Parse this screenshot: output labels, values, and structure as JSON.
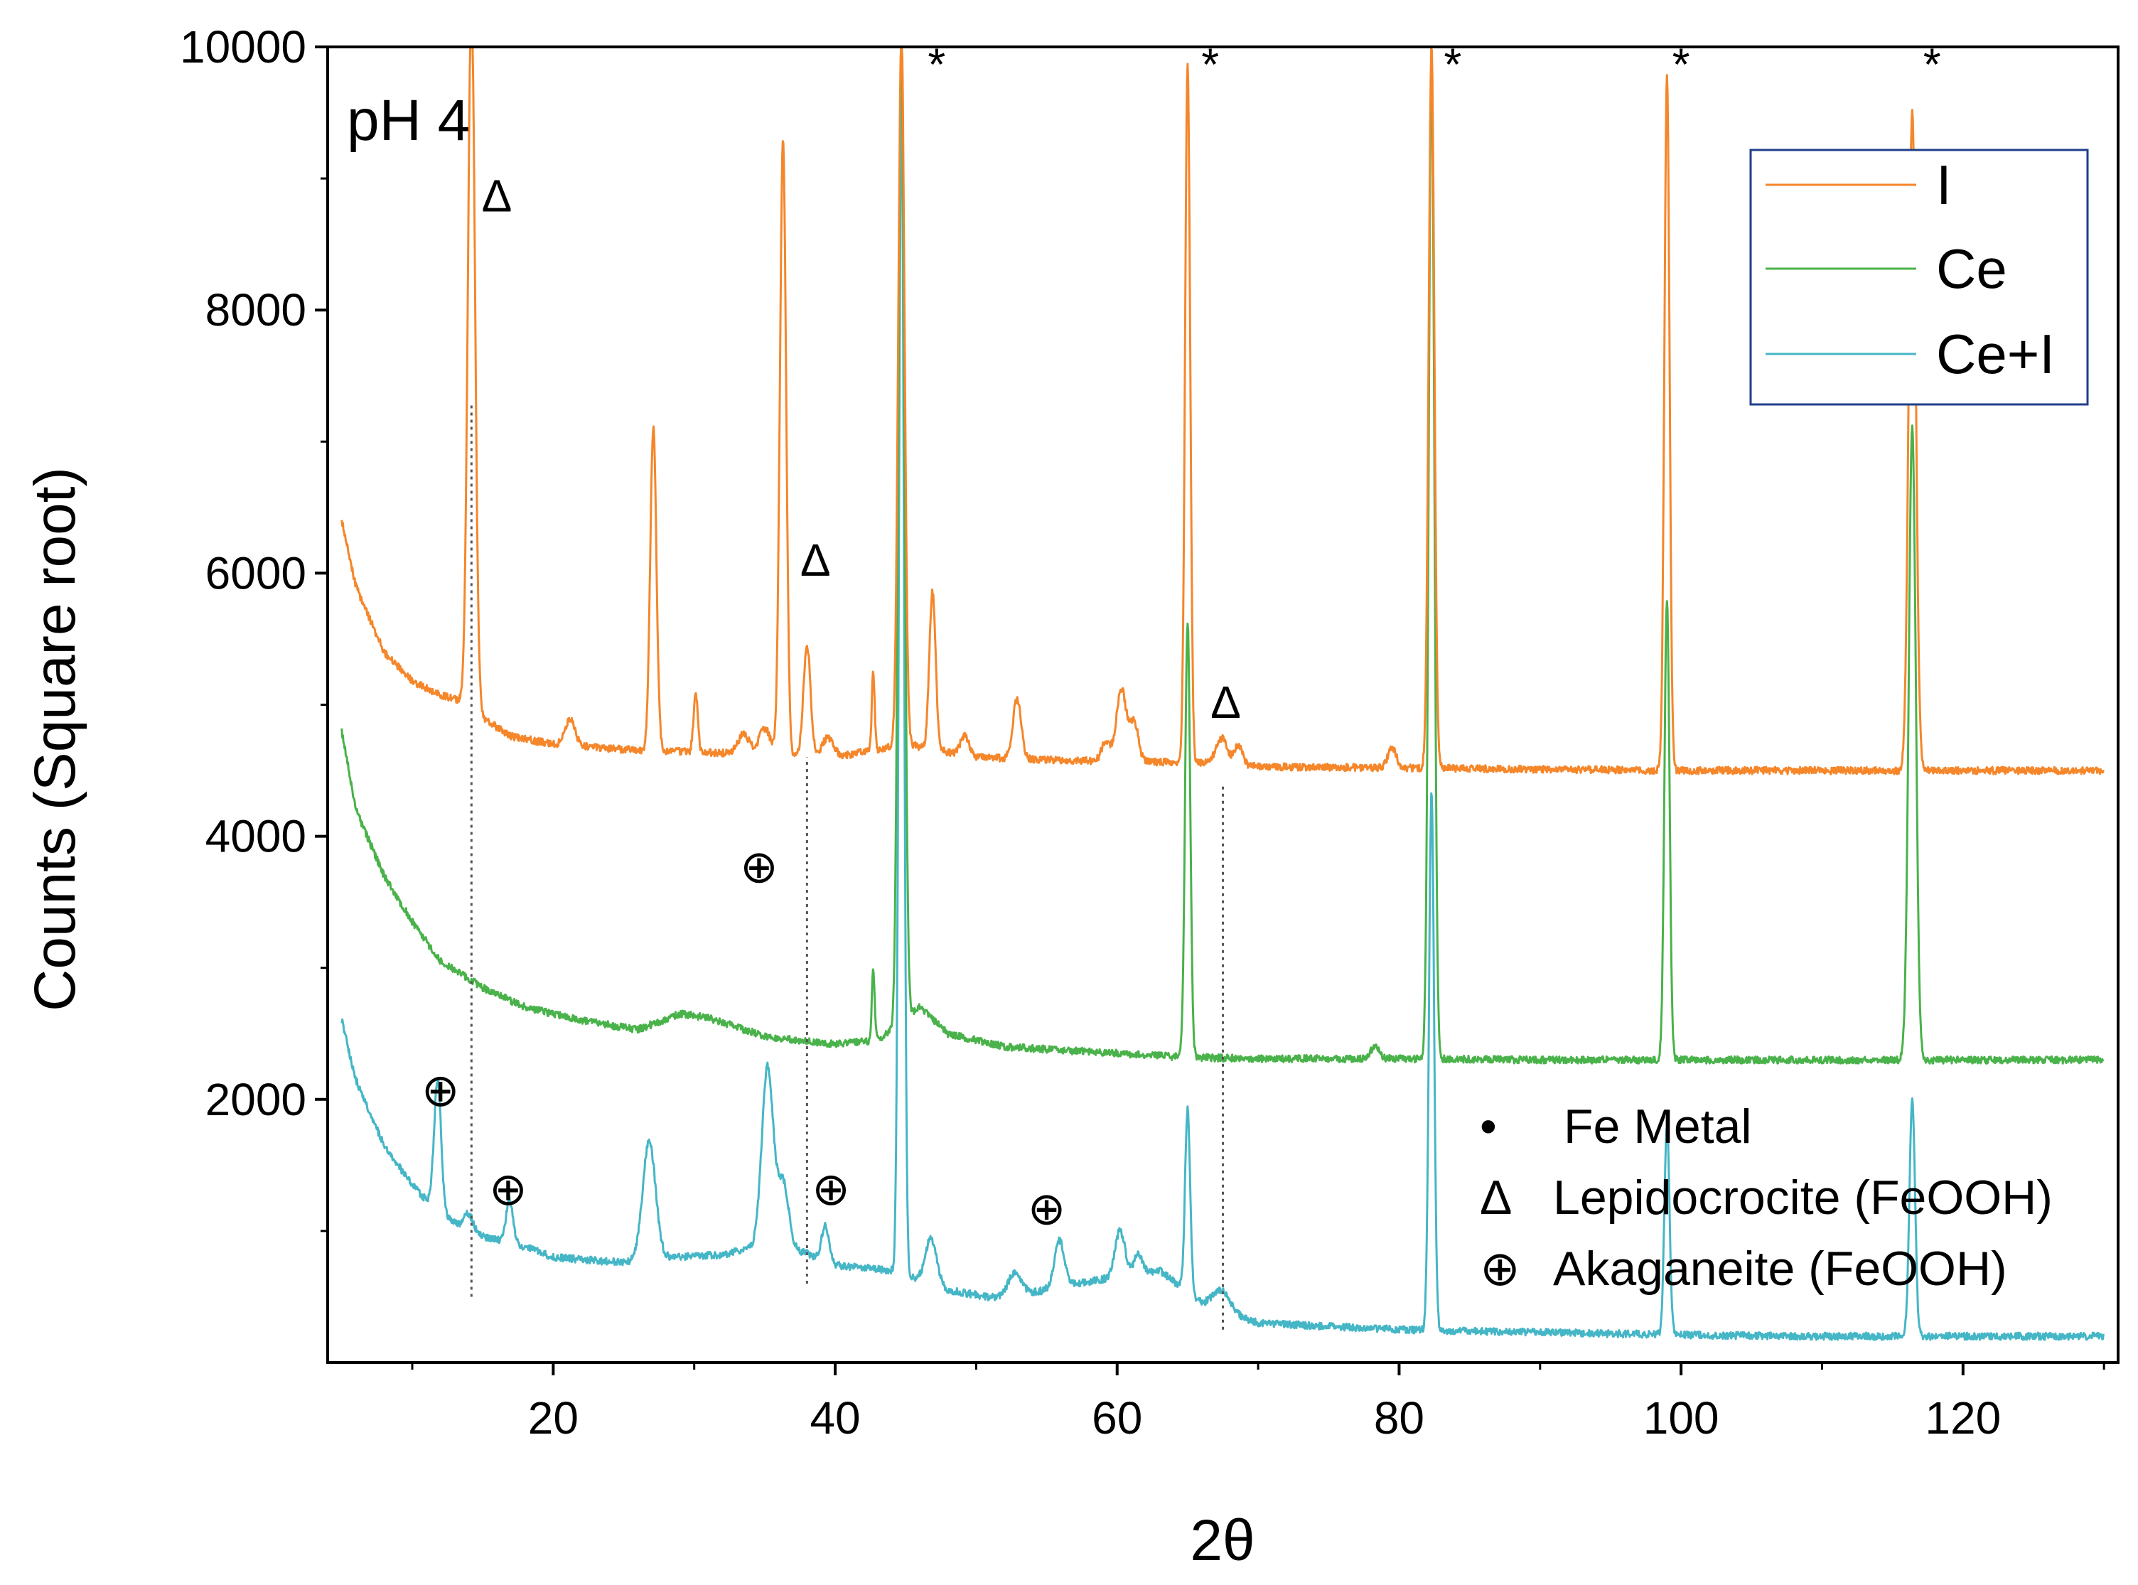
{
  "chart_data": {
    "type": "line",
    "title": "",
    "panel_label": "pH 4",
    "xlabel": "2θ",
    "ylabel": "Counts (Square root)",
    "xlim": [
      4,
      131
    ],
    "ylim": [
      0,
      10000
    ],
    "x_ticks": [
      20,
      40,
      60,
      80,
      100,
      120
    ],
    "x_tick_labels": [
      "20",
      "40",
      "60",
      "80",
      "100",
      "120"
    ],
    "y_ticks": [
      2000,
      4000,
      6000,
      8000,
      10000
    ],
    "y_tick_labels": [
      "2000",
      "4000",
      "6000",
      "8000",
      "10000"
    ],
    "legend_position": "top-right",
    "series": [
      {
        "name": "I",
        "color": "#f5862a",
        "baseline": [
          [
            5,
            6400
          ],
          [
            6,
            5900
          ],
          [
            8,
            5400
          ],
          [
            10,
            5180
          ],
          [
            12,
            5070
          ],
          [
            13.5,
            5030
          ],
          [
            15,
            4900
          ],
          [
            17,
            4760
          ],
          [
            20,
            4700
          ],
          [
            25,
            4660
          ],
          [
            30,
            4640
          ],
          [
            35,
            4620
          ],
          [
            40,
            4600
          ],
          [
            43,
            4660
          ],
          [
            45,
            4700
          ],
          [
            50,
            4600
          ],
          [
            55,
            4580
          ],
          [
            60,
            4570
          ],
          [
            65,
            4560
          ],
          [
            70,
            4530
          ],
          [
            80,
            4520
          ],
          [
            90,
            4510
          ],
          [
            100,
            4500
          ],
          [
            110,
            4500
          ],
          [
            120,
            4500
          ],
          [
            130,
            4500
          ]
        ],
        "peaks": [
          [
            14.2,
            5400,
            0.25
          ],
          [
            21.2,
            200,
            0.35
          ],
          [
            27.1,
            2450,
            0.22
          ],
          [
            30.1,
            450,
            0.15
          ],
          [
            33.5,
            150,
            0.4
          ],
          [
            35.0,
            200,
            0.4
          ],
          [
            36.3,
            4700,
            0.22
          ],
          [
            38.0,
            850,
            0.25
          ],
          [
            39.5,
            150,
            0.4
          ],
          [
            42.7,
            600,
            0.1
          ],
          [
            44.7,
            5400,
            0.22
          ],
          [
            46.9,
            1200,
            0.22
          ],
          [
            49.2,
            150,
            0.3
          ],
          [
            52.9,
            450,
            0.3
          ],
          [
            59.2,
            150,
            0.3
          ],
          [
            60.3,
            550,
            0.35
          ],
          [
            61.2,
            300,
            0.3
          ],
          [
            65.0,
            5300,
            0.18
          ],
          [
            67.4,
            200,
            0.4
          ],
          [
            68.6,
            150,
            0.3
          ],
          [
            79.5,
            150,
            0.3
          ],
          [
            82.3,
            5500,
            0.2
          ],
          [
            99.0,
            5300,
            0.18
          ],
          [
            116.4,
            5000,
            0.25
          ]
        ]
      },
      {
        "name": "Ce",
        "color": "#49b24a",
        "baseline": [
          [
            5,
            4800
          ],
          [
            6,
            4200
          ],
          [
            8,
            3700
          ],
          [
            10,
            3350
          ],
          [
            12,
            3050
          ],
          [
            15,
            2850
          ],
          [
            18,
            2700
          ],
          [
            22,
            2600
          ],
          [
            26,
            2530
          ],
          [
            29,
            2650
          ],
          [
            31,
            2620
          ],
          [
            35,
            2480
          ],
          [
            40,
            2420
          ],
          [
            43,
            2450
          ],
          [
            46,
            2700
          ],
          [
            48,
            2500
          ],
          [
            52,
            2400
          ],
          [
            60,
            2350
          ],
          [
            65,
            2320
          ],
          [
            70,
            2310
          ],
          [
            80,
            2310
          ],
          [
            90,
            2300
          ],
          [
            100,
            2300
          ],
          [
            110,
            2300
          ],
          [
            120,
            2300
          ],
          [
            130,
            2300
          ]
        ],
        "peaks": [
          [
            42.7,
            550,
            0.1
          ],
          [
            44.7,
            7500,
            0.22
          ],
          [
            65.0,
            3300,
            0.18
          ],
          [
            78.3,
            100,
            0.3
          ],
          [
            82.3,
            7600,
            0.2
          ],
          [
            99.0,
            3500,
            0.18
          ],
          [
            116.4,
            4800,
            0.25
          ]
        ]
      },
      {
        "name": "Ce+I",
        "color": "#45b6c6",
        "baseline": [
          [
            5,
            2600
          ],
          [
            6,
            2150
          ],
          [
            8,
            1650
          ],
          [
            10,
            1350
          ],
          [
            12,
            1120
          ],
          [
            15,
            960
          ],
          [
            18,
            880
          ],
          [
            20,
            800
          ],
          [
            25,
            760
          ],
          [
            28,
            800
          ],
          [
            32,
            820
          ],
          [
            35,
            900
          ],
          [
            38,
            830
          ],
          [
            40,
            740
          ],
          [
            44,
            700
          ],
          [
            48,
            550
          ],
          [
            52,
            480
          ],
          [
            56,
            580
          ],
          [
            60,
            650
          ],
          [
            63,
            700
          ],
          [
            66,
            450
          ],
          [
            70,
            300
          ],
          [
            80,
            250
          ],
          [
            90,
            230
          ],
          [
            100,
            210
          ],
          [
            110,
            200
          ],
          [
            120,
            200
          ],
          [
            130,
            200
          ]
        ],
        "peaks": [
          [
            11.8,
            1000,
            0.25
          ],
          [
            14.0,
            120,
            0.3
          ],
          [
            16.9,
            330,
            0.25
          ],
          [
            26.8,
            900,
            0.45
          ],
          [
            35.2,
            1350,
            0.4
          ],
          [
            36.3,
            500,
            0.4
          ],
          [
            39.3,
            280,
            0.25
          ],
          [
            44.7,
            9000,
            0.18
          ],
          [
            46.8,
            350,
            0.4
          ],
          [
            52.7,
            180,
            0.5
          ],
          [
            55.9,
            350,
            0.35
          ],
          [
            60.2,
            350,
            0.35
          ],
          [
            61.5,
            150,
            0.3
          ],
          [
            65.0,
            1400,
            0.18
          ],
          [
            67.4,
            150,
            0.6
          ],
          [
            82.3,
            4100,
            0.18
          ],
          [
            99.0,
            1600,
            0.18
          ],
          [
            116.4,
            1800,
            0.2
          ]
        ]
      }
    ],
    "star_markers": [
      {
        "x": 47.2,
        "y": 9750,
        "label": "*"
      },
      {
        "x": 66.6,
        "y": 9750,
        "label": "*"
      },
      {
        "x": 83.8,
        "y": 9750,
        "label": "*"
      },
      {
        "x": 100.0,
        "y": 9750,
        "label": "*"
      },
      {
        "x": 117.8,
        "y": 9750,
        "label": "*"
      }
    ],
    "lepidocrocite_markers": [
      {
        "x": 16.0,
        "y": 8750,
        "label": "Δ"
      },
      {
        "x": 38.6,
        "y": 5980,
        "label": "Δ"
      },
      {
        "x": 67.7,
        "y": 4900,
        "label": "Δ"
      }
    ],
    "akaganeite_markers": [
      {
        "x": 12.0,
        "y": 1950,
        "label": "⊕"
      },
      {
        "x": 16.8,
        "y": 1200,
        "label": "⊕"
      },
      {
        "x": 34.6,
        "y": 3650,
        "label": "⊕"
      },
      {
        "x": 39.7,
        "y": 1200,
        "label": "⊕"
      },
      {
        "x": 55.0,
        "y": 1050,
        "label": "⊕"
      }
    ],
    "reference_lines": [
      {
        "x": 14.2,
        "y_from": 500,
        "y_to": 7300
      },
      {
        "x": 38.0,
        "y_from": 600,
        "y_to": 4600
      },
      {
        "x": 67.5,
        "y_from": 250,
        "y_to": 4400
      }
    ],
    "phase_key": [
      {
        "symbol": "•",
        "label": "Fe Metal"
      },
      {
        "symbol": "Δ",
        "label": "Lepidocrocite (FeOOH)"
      },
      {
        "symbol": "⊕",
        "label": "Akaganeite (FeOOH)"
      }
    ]
  }
}
